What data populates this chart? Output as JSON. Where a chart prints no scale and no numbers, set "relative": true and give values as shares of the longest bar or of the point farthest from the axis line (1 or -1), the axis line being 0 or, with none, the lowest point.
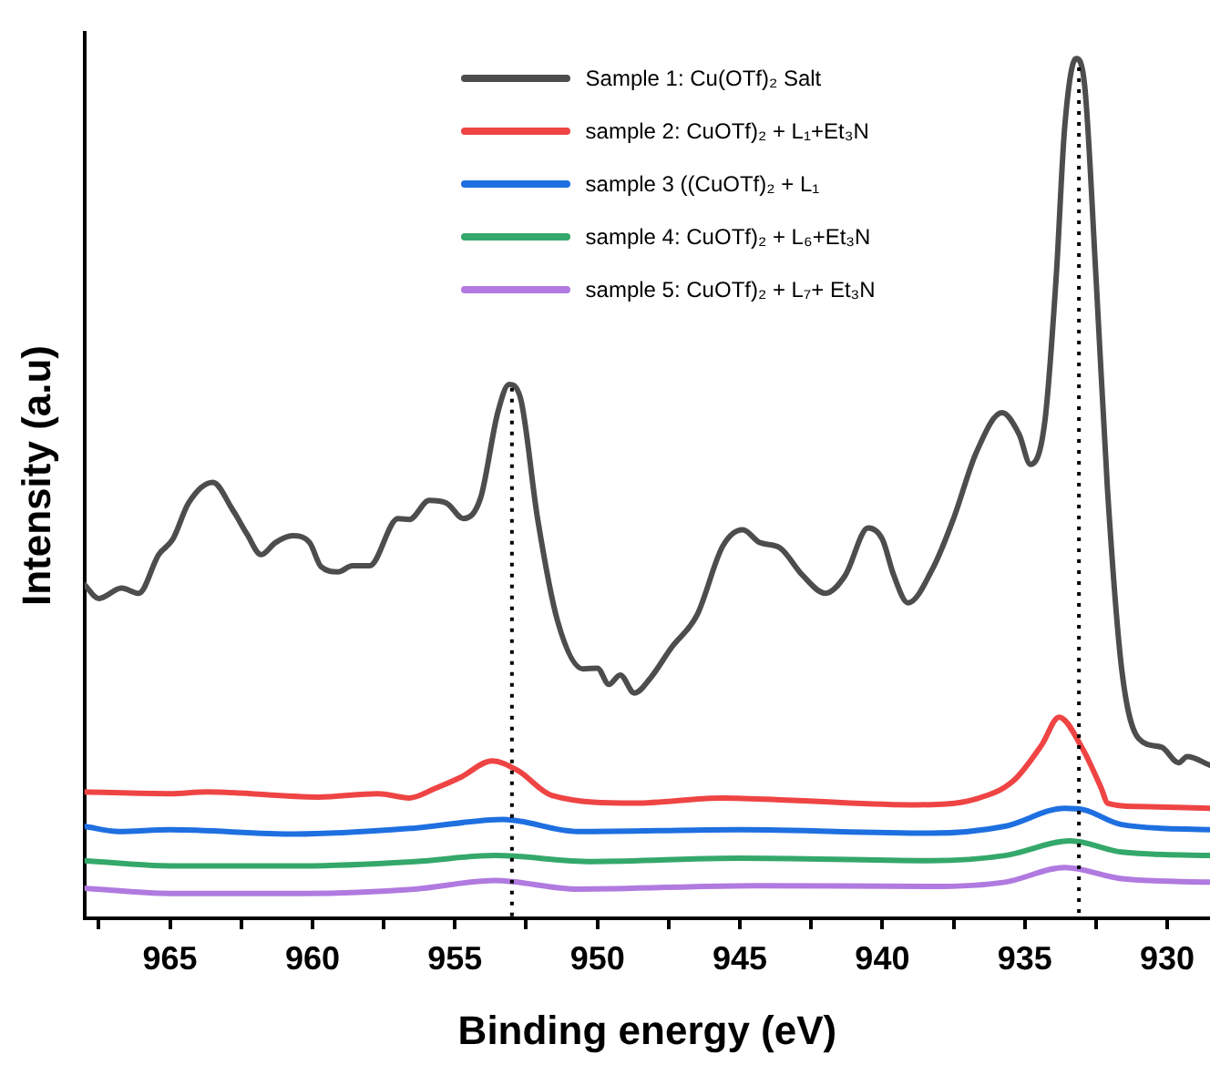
{
  "chart_data": {
    "type": "line",
    "xlabel": "Binding energy (eV)",
    "ylabel": "Intensity (a.u)",
    "relative": true,
    "xlim": [
      968,
      928.5
    ],
    "xticks": [
      {
        "value": 967.5,
        "label": null
      },
      965,
      {
        "value": 962.5,
        "label": null
      },
      960,
      {
        "value": 957.5,
        "label": null
      },
      955,
      {
        "value": 952.5,
        "label": null
      },
      950,
      {
        "value": 947.5,
        "label": null
      },
      945,
      {
        "value": 942.5,
        "label": null
      },
      940,
      {
        "value": 937.5,
        "label": null
      },
      935,
      {
        "value": 932.5,
        "label": null
      },
      930
    ],
    "legend": "top right",
    "marker": "none",
    "line_style": "solid",
    "grid": false,
    "ref_lines": [
      {
        "axis": "x",
        "value": 953.0,
        "line_style": "dotted",
        "color": "#000000"
      },
      {
        "axis": "x",
        "value": 933.1,
        "line_style": "dotted",
        "color": "#000000"
      }
    ],
    "series": [
      {
        "name": "Sample 1: Cu(OTf)₂ Salt",
        "color": "#4d4d4d",
        "x": [
          968.0,
          967.5,
          966.7,
          966.1,
          965.4,
          964.9,
          964.35,
          963.5,
          962.8,
          962.3,
          961.8,
          961.3,
          960.7,
          960.1,
          959.7,
          959.1,
          958.6,
          958.0,
          957.0,
          956.6,
          955.9,
          955.3,
          954.7,
          954.1,
          953.5,
          953.1,
          952.7,
          952.1,
          951.4,
          950.5,
          950.0,
          949.6,
          949.2,
          948.7,
          948.15,
          947.4,
          946.5,
          945.6,
          944.9,
          944.3,
          943.6,
          942.8,
          942.0,
          941.3,
          940.5,
          940.0,
          939.6,
          939.1,
          938.2,
          937.5,
          936.7,
          935.8,
          935.2,
          934.8,
          934.3,
          933.9,
          933.6,
          933.2,
          932.9,
          932.5,
          932.1,
          931.6,
          931.0,
          930.2,
          929.6,
          929.3,
          928.5
        ],
        "values": [
          0.388,
          0.372,
          0.384,
          0.378,
          0.423,
          0.441,
          0.483,
          0.507,
          0.475,
          0.447,
          0.423,
          0.437,
          0.445,
          0.437,
          0.409,
          0.403,
          0.41,
          0.41,
          0.465,
          0.464,
          0.486,
          0.483,
          0.465,
          0.489,
          0.588,
          0.621,
          0.605,
          0.465,
          0.346,
          0.29,
          0.291,
          0.272,
          0.283,
          0.262,
          0.279,
          0.315,
          0.353,
          0.433,
          0.452,
          0.437,
          0.431,
          0.399,
          0.378,
          0.399,
          0.454,
          0.441,
          0.399,
          0.367,
          0.409,
          0.465,
          0.542,
          0.588,
          0.563,
          0.528,
          0.577,
          0.745,
          0.92,
          1,
          0.969,
          0.745,
          0.5,
          0.29,
          0.209,
          0.199,
          0.181,
          0.188,
          0.178
        ]
      },
      {
        "name": "sample 2: CuOTf)₂ + L₁+Et₃N",
        "color": "#ef4444",
        "x": [
          968.0,
          965.0,
          963.7,
          959.8,
          957.7,
          956.6,
          955.7,
          954.8,
          953.7,
          952.8,
          951.6,
          948.7,
          945.6,
          943.0,
          938.8,
          936.7,
          935.4,
          934.4,
          933.8,
          933.0,
          932.3,
          932.1,
          931.0,
          928.5
        ],
        "values": [
          0.147,
          0.145,
          0.147,
          0.141,
          0.145,
          0.14,
          0.151,
          0.164,
          0.183,
          0.172,
          0.143,
          0.134,
          0.14,
          0.137,
          0.132,
          0.139,
          0.16,
          0.202,
          0.234,
          0.199,
          0.15,
          0.134,
          0.13,
          0.128
        ]
      },
      {
        "name": "sample 3 ((CuOTf)₂ + L₁",
        "color": "#1e6fe0",
        "x": [
          968.0,
          966.8,
          965.0,
          960.6,
          956.4,
          953.3,
          950.7,
          945.0,
          938.3,
          935.7,
          933.6,
          932.9,
          931.6,
          928.5
        ],
        "values": [
          0.107,
          0.101,
          0.103,
          0.098,
          0.105,
          0.115,
          0.101,
          0.103,
          0.099,
          0.107,
          0.128,
          0.126,
          0.109,
          0.103
        ]
      },
      {
        "name": "sample 4: CuOTf)₂ + L₆+Et₃N",
        "color": "#34a86a",
        "x": [
          968.0,
          965.0,
          960.3,
          956.4,
          953.6,
          950.2,
          945.0,
          938.3,
          935.7,
          933.4,
          931.6,
          928.5
        ],
        "values": [
          0.067,
          0.061,
          0.061,
          0.066,
          0.073,
          0.066,
          0.07,
          0.067,
          0.073,
          0.09,
          0.077,
          0.073
        ]
      },
      {
        "name": "sample 5: CuOTf)₂ + L₇+ Et₃N",
        "color": "#b07ae0",
        "x": [
          968.0,
          965.0,
          960.3,
          956.4,
          953.6,
          950.7,
          944.5,
          938.3,
          935.7,
          933.6,
          931.6,
          928.5
        ],
        "values": [
          0.035,
          0.029,
          0.029,
          0.034,
          0.044,
          0.034,
          0.038,
          0.037,
          0.042,
          0.059,
          0.046,
          0.042
        ]
      }
    ]
  }
}
